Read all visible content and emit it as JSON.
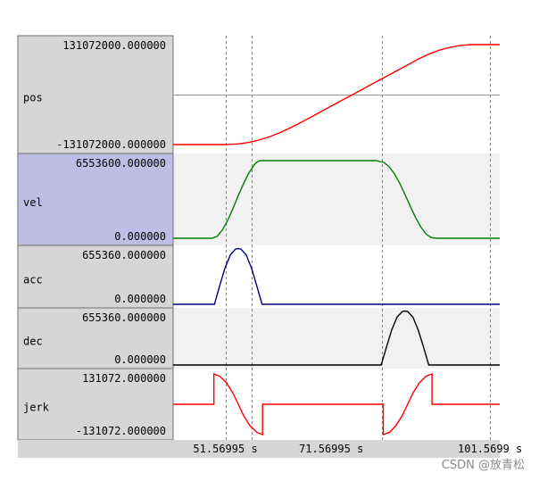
{
  "chart_data": {
    "type": "line",
    "x_axis": {
      "tick_labels": [
        "51.56995 s",
        "71.56995 s",
        "101.5699 s"
      ],
      "tick_values": [
        51.56995,
        71.56995,
        101.5699
      ],
      "range": [
        41.7,
        103.4
      ]
    },
    "channels": [
      {
        "name": "pos",
        "max_label": "131072000.000000",
        "min_label": "-131072000.000000",
        "range": [
          -131072000,
          131072000
        ],
        "color": "#ff0000",
        "selected": false,
        "x": [
          41.7,
          51.6,
          54.0,
          56.0,
          58.0,
          60.0,
          62.0,
          64.0,
          66.0,
          68.0,
          70.0,
          72.0,
          74.0,
          76.0,
          78.0,
          80.0,
          82.0,
          84.0,
          86.0,
          88.0,
          90.0,
          92.0,
          94.0,
          96.0,
          98.0,
          100.0,
          103.4
        ],
        "y": [
          -131072000,
          -131072000,
          -129500000,
          -125500000,
          -119000000,
          -110000000,
          -99000000,
          -86000000,
          -72000000,
          -57000000,
          -42000000,
          -27000000,
          -12000000,
          3000000,
          18000000,
          33000000,
          48000000,
          63000000,
          78000000,
          93000000,
          106000000,
          116500000,
          124000000,
          129000000,
          131072000,
          131072000,
          131072000
        ]
      },
      {
        "name": "vel",
        "max_label": "6553600.000000",
        "min_label": "0.000000",
        "range": [
          0,
          6553600
        ],
        "color": "#008000",
        "selected": true,
        "x": [
          41.7,
          49.0,
          50.0,
          51.0,
          52.0,
          53.0,
          54.0,
          55.0,
          56.0,
          57.0,
          57.6,
          58.2,
          59.0,
          80.0,
          81.5,
          82.5,
          83.5,
          84.5,
          85.5,
          86.5,
          87.5,
          88.5,
          89.5,
          90.5,
          91.5,
          103.4
        ],
        "y": [
          0,
          0,
          150000,
          700000,
          1500000,
          2500000,
          3600000,
          4600000,
          5500000,
          6200000,
          6450000,
          6553600,
          6553600,
          6553600,
          6400000,
          6050000,
          5450000,
          4650000,
          3700000,
          2700000,
          1750000,
          950000,
          350000,
          50000,
          0,
          0
        ]
      },
      {
        "name": "acc",
        "max_label": "655360.000000",
        "min_label": "0.000000",
        "range": [
          0,
          655360
        ],
        "color": "#000080",
        "selected": false,
        "x": [
          41.7,
          49.5,
          50.5,
          51.5,
          52.5,
          53.5,
          54.0,
          54.5,
          55.5,
          56.5,
          57.5,
          58.5,
          103.4
        ],
        "y": [
          0,
          0,
          220000,
          430000,
          585000,
          655360,
          660000,
          655360,
          585000,
          430000,
          220000,
          0,
          0
        ]
      },
      {
        "name": "dec",
        "max_label": "655360.000000",
        "min_label": "0.000000",
        "range": [
          0,
          655360
        ],
        "color": "#000000",
        "selected": false,
        "x": [
          41.7,
          81.0,
          82.0,
          83.0,
          84.0,
          85.0,
          85.5,
          86.0,
          87.0,
          88.0,
          89.0,
          90.0,
          103.4
        ],
        "y": [
          0,
          0,
          220000,
          430000,
          585000,
          655360,
          660000,
          655360,
          585000,
          430000,
          220000,
          0,
          0
        ]
      },
      {
        "name": "jerk",
        "max_label": "131072.000000",
        "min_label": "-131072.000000",
        "range": [
          -131072,
          131072
        ],
        "color": "#ff0000",
        "selected": false,
        "x": [
          41.7,
          49.4,
          49.4,
          50.5,
          51.8,
          53.0,
          54.0,
          55.0,
          56.2,
          57.5,
          58.6,
          58.6,
          81.4,
          81.4,
          82.6,
          83.8,
          85.0,
          86.0,
          87.0,
          88.2,
          89.5,
          90.6,
          90.6,
          103.4
        ],
        "y": [
          0,
          0,
          131072,
          121000,
          92000,
          48000,
          0,
          -48000,
          -92000,
          -121000,
          -131072,
          0,
          0,
          -131072,
          -121000,
          -92000,
          -48000,
          0,
          48000,
          92000,
          121000,
          131072,
          0,
          0
        ]
      }
    ],
    "cursor_times": [
      51.56995,
      56.6,
      81.2,
      101.5699
    ]
  },
  "watermark": "CSDN @放青松"
}
